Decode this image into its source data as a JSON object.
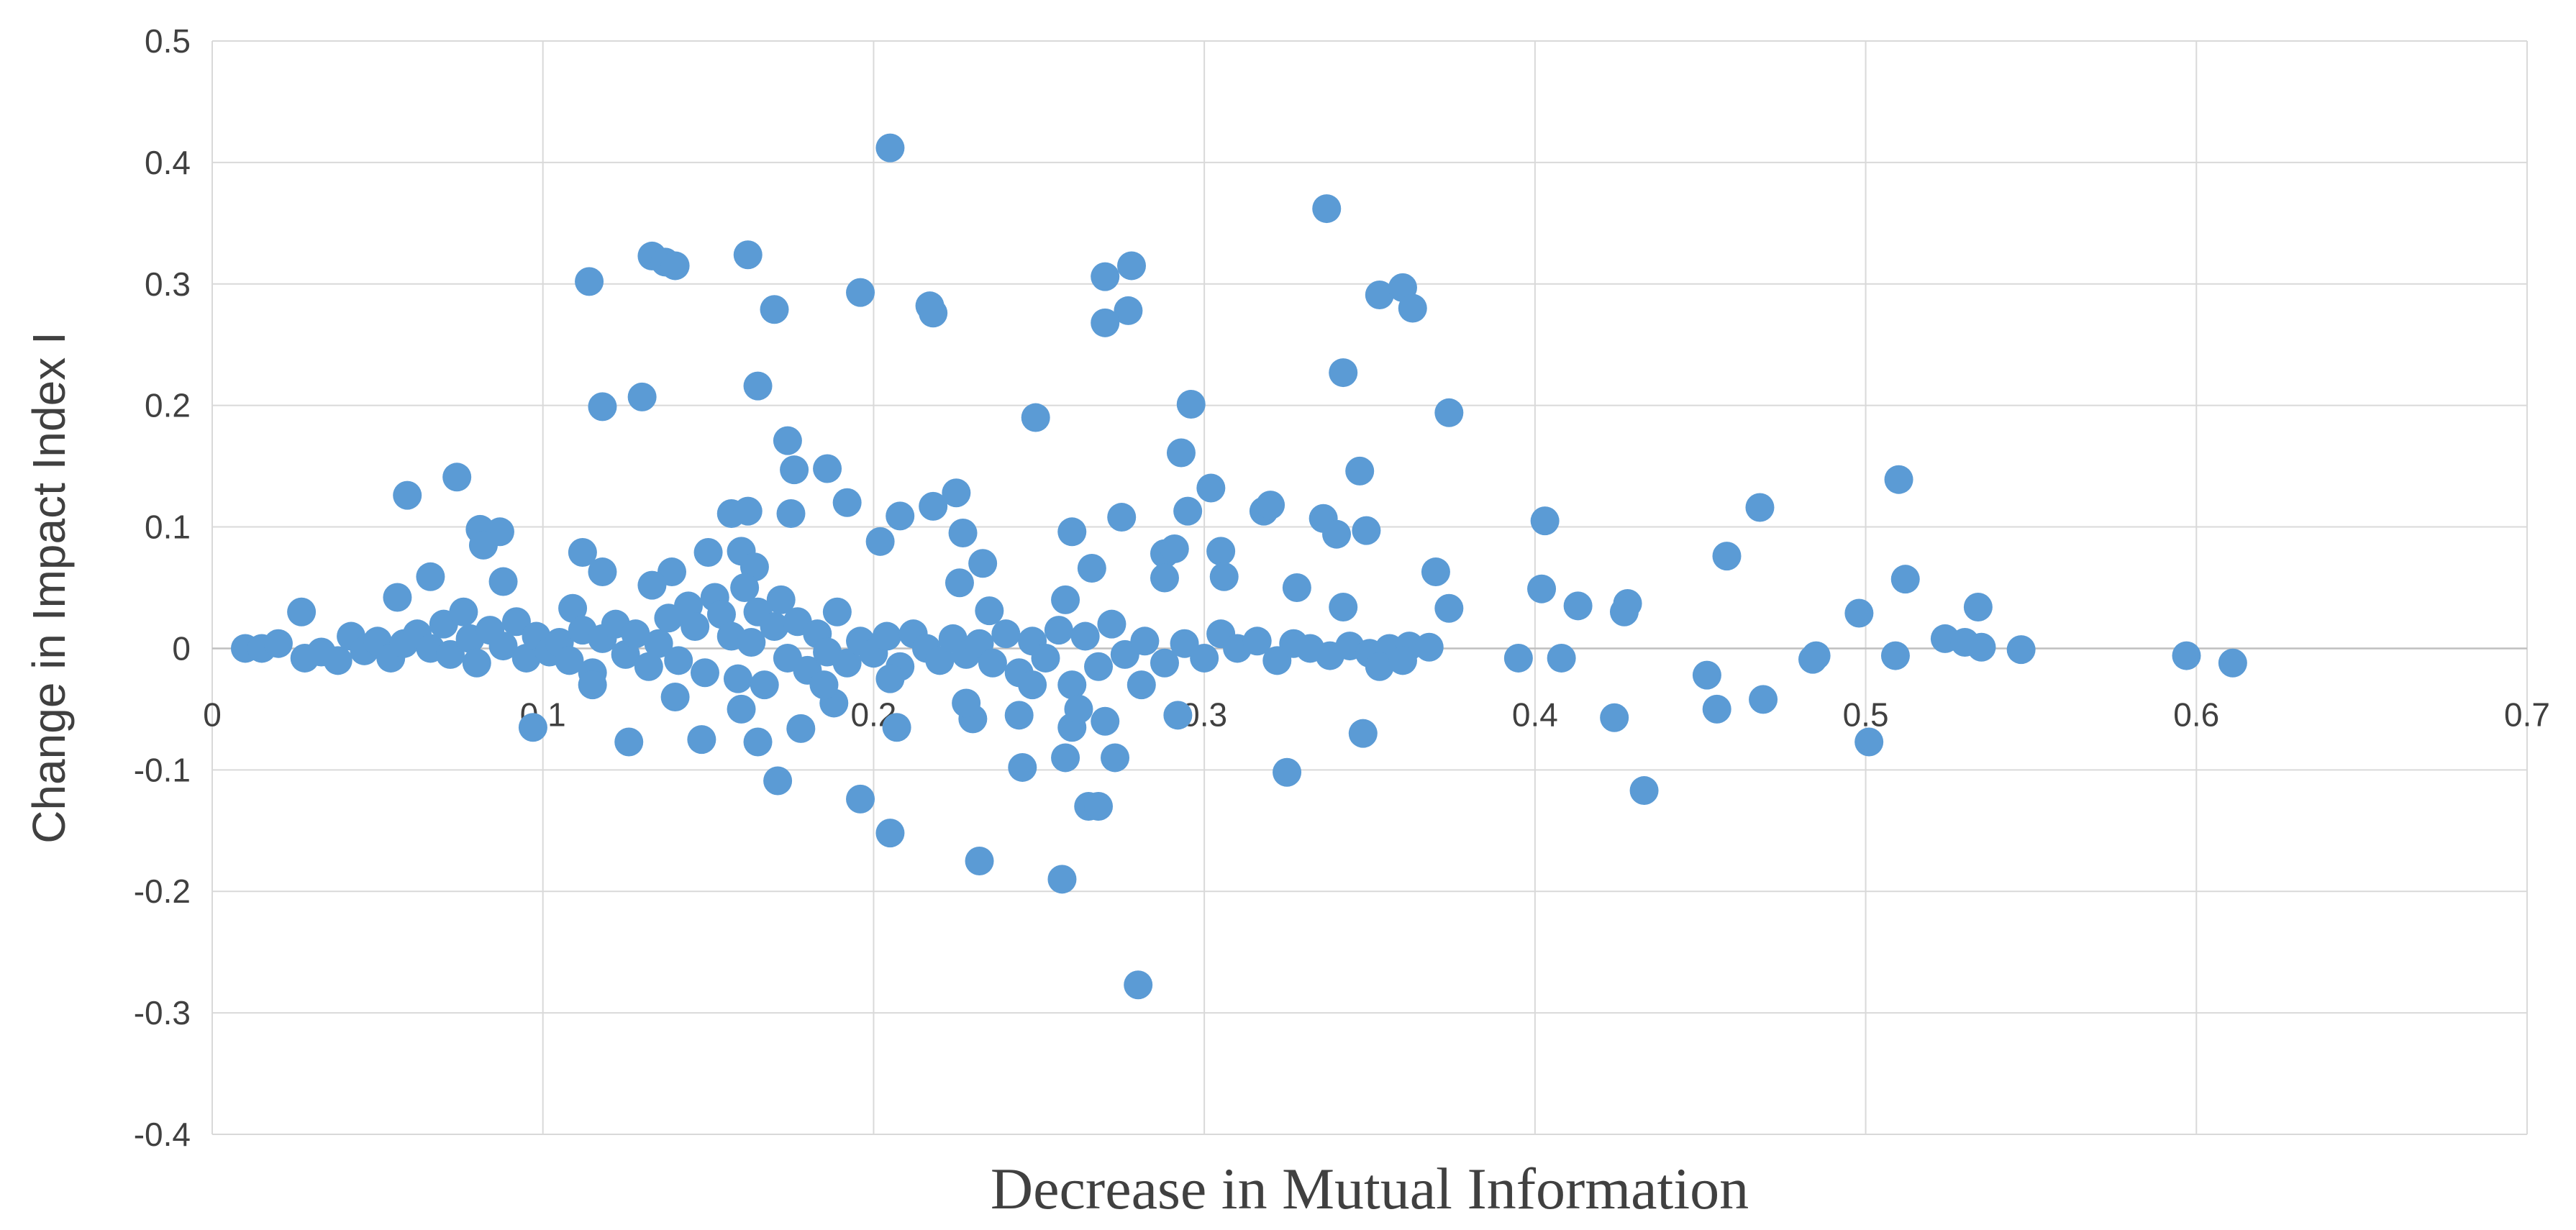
{
  "chart_data": {
    "type": "scatter",
    "title": "",
    "xlabel": "Decrease in Mutual Information",
    "ylabel": "Change in Impact Index I",
    "xlim": [
      0,
      0.7
    ],
    "ylim": [
      -0.4,
      0.5
    ],
    "xticks": [
      0,
      0.1,
      0.2,
      0.3,
      0.4,
      0.5,
      0.6,
      0.7
    ],
    "xtick_labels": [
      "0",
      "0.1",
      "0.2",
      "0.3",
      "0.4",
      "0.5",
      "0.6",
      "0.7"
    ],
    "yticks": [
      0.5,
      0.4,
      0.3,
      0.2,
      0.1,
      0,
      -0.1,
      -0.2,
      -0.3,
      -0.4
    ],
    "ytick_labels": [
      "0.5",
      "0.4",
      "0.3",
      "0.2",
      "0.1",
      "0",
      "-0.1",
      "-0.2",
      "-0.3",
      "-0.4"
    ],
    "grid": true,
    "legend": "none",
    "marker_color": "#5B9BD5",
    "grid_color": "#D9D9D9",
    "series": [
      {
        "name": "points",
        "points": [
          [
            0.205,
            0.412
          ],
          [
            0.337,
            0.362
          ],
          [
            0.133,
            0.323
          ],
          [
            0.137,
            0.318
          ],
          [
            0.14,
            0.315
          ],
          [
            0.162,
            0.324
          ],
          [
            0.114,
            0.302
          ],
          [
            0.17,
            0.279
          ],
          [
            0.196,
            0.293
          ],
          [
            0.217,
            0.282
          ],
          [
            0.218,
            0.276
          ],
          [
            0.27,
            0.306
          ],
          [
            0.277,
            0.278
          ],
          [
            0.278,
            0.315
          ],
          [
            0.27,
            0.268
          ],
          [
            0.353,
            0.291
          ],
          [
            0.36,
            0.297
          ],
          [
            0.363,
            0.28
          ],
          [
            0.118,
            0.199
          ],
          [
            0.13,
            0.207
          ],
          [
            0.165,
            0.216
          ],
          [
            0.249,
            0.19
          ],
          [
            0.296,
            0.201
          ],
          [
            0.342,
            0.227
          ],
          [
            0.374,
            0.194
          ],
          [
            0.174,
            0.171
          ],
          [
            0.176,
            0.147
          ],
          [
            0.186,
            0.148
          ],
          [
            0.192,
            0.12
          ],
          [
            0.293,
            0.161
          ],
          [
            0.059,
            0.126
          ],
          [
            0.074,
            0.141
          ],
          [
            0.225,
            0.128
          ],
          [
            0.218,
            0.117
          ],
          [
            0.208,
            0.109
          ],
          [
            0.175,
            0.111
          ],
          [
            0.157,
            0.111
          ],
          [
            0.162,
            0.113
          ],
          [
            0.275,
            0.108
          ],
          [
            0.295,
            0.113
          ],
          [
            0.302,
            0.132
          ],
          [
            0.318,
            0.113
          ],
          [
            0.32,
            0.118
          ],
          [
            0.336,
            0.107
          ],
          [
            0.347,
            0.146
          ],
          [
            0.349,
            0.097
          ],
          [
            0.34,
            0.094
          ],
          [
            0.403,
            0.105
          ],
          [
            0.468,
            0.116
          ],
          [
            0.51,
            0.139
          ],
          [
            0.081,
            0.098
          ],
          [
            0.087,
            0.096
          ],
          [
            0.082,
            0.085
          ],
          [
            0.202,
            0.088
          ],
          [
            0.227,
            0.095
          ],
          [
            0.26,
            0.096
          ],
          [
            0.288,
            0.078
          ],
          [
            0.291,
            0.082
          ],
          [
            0.305,
            0.08
          ],
          [
            0.112,
            0.079
          ],
          [
            0.15,
            0.079
          ],
          [
            0.16,
            0.08
          ],
          [
            0.066,
            0.059
          ],
          [
            0.088,
            0.055
          ],
          [
            0.139,
            0.063
          ],
          [
            0.118,
            0.063
          ],
          [
            0.164,
            0.067
          ],
          [
            0.233,
            0.07
          ],
          [
            0.266,
            0.066
          ],
          [
            0.288,
            0.058
          ],
          [
            0.306,
            0.059
          ],
          [
            0.328,
            0.05
          ],
          [
            0.37,
            0.063
          ],
          [
            0.402,
            0.049
          ],
          [
            0.458,
            0.076
          ],
          [
            0.512,
            0.057
          ],
          [
            0.056,
            0.042
          ],
          [
            0.133,
            0.052
          ],
          [
            0.226,
            0.054
          ],
          [
            0.258,
            0.04
          ],
          [
            0.342,
            0.034
          ],
          [
            0.374,
            0.033
          ],
          [
            0.413,
            0.035
          ],
          [
            0.428,
            0.037
          ],
          [
            0.498,
            0.029
          ],
          [
            0.534,
            0.034
          ],
          [
            0.027,
            0.03
          ],
          [
            0.109,
            0.033
          ],
          [
            0.235,
            0.031
          ],
          [
            0.427,
            0.03
          ],
          [
            0.01,
            0.0
          ],
          [
            0.015,
            0.0
          ],
          [
            0.02,
            0.004
          ],
          [
            0.028,
            -0.008
          ],
          [
            0.033,
            -0.003
          ],
          [
            0.038,
            -0.01
          ],
          [
            0.042,
            0.01
          ],
          [
            0.046,
            -0.002
          ],
          [
            0.05,
            0.006
          ],
          [
            0.054,
            -0.008
          ],
          [
            0.058,
            0.004
          ],
          [
            0.062,
            0.012
          ],
          [
            0.066,
            0.0
          ],
          [
            0.07,
            0.02
          ],
          [
            0.072,
            -0.005
          ],
          [
            0.076,
            0.03
          ],
          [
            0.078,
            0.008
          ],
          [
            0.08,
            -0.012
          ],
          [
            0.084,
            0.015
          ],
          [
            0.088,
            0.002
          ],
          [
            0.092,
            0.022
          ],
          [
            0.095,
            -0.008
          ],
          [
            0.098,
            0.01
          ],
          [
            0.102,
            -0.003
          ],
          [
            0.105,
            0.005
          ],
          [
            0.108,
            -0.01
          ],
          [
            0.112,
            0.015
          ],
          [
            0.115,
            -0.02
          ],
          [
            0.118,
            0.008
          ],
          [
            0.122,
            0.02
          ],
          [
            0.125,
            -0.005
          ],
          [
            0.128,
            0.012
          ],
          [
            0.132,
            -0.015
          ],
          [
            0.135,
            0.004
          ],
          [
            0.138,
            0.025
          ],
          [
            0.141,
            -0.01
          ],
          [
            0.144,
            0.035
          ],
          [
            0.146,
            0.018
          ],
          [
            0.149,
            -0.02
          ],
          [
            0.152,
            0.042
          ],
          [
            0.154,
            0.028
          ],
          [
            0.157,
            0.01
          ],
          [
            0.159,
            -0.025
          ],
          [
            0.161,
            0.05
          ],
          [
            0.163,
            0.005
          ],
          [
            0.165,
            0.03
          ],
          [
            0.167,
            -0.03
          ],
          [
            0.17,
            0.018
          ],
          [
            0.172,
            0.04
          ],
          [
            0.174,
            -0.008
          ],
          [
            0.177,
            0.022
          ],
          [
            0.18,
            -0.018
          ],
          [
            0.183,
            0.012
          ],
          [
            0.186,
            -0.003
          ],
          [
            0.189,
            0.03
          ],
          [
            0.192,
            -0.012
          ],
          [
            0.196,
            0.006
          ],
          [
            0.2,
            -0.004
          ],
          [
            0.204,
            0.01
          ],
          [
            0.208,
            -0.015
          ],
          [
            0.212,
            0.012
          ],
          [
            0.216,
            0.0
          ],
          [
            0.22,
            -0.01
          ],
          [
            0.224,
            0.008
          ],
          [
            0.228,
            -0.005
          ],
          [
            0.232,
            0.004
          ],
          [
            0.236,
            -0.012
          ],
          [
            0.24,
            0.012
          ],
          [
            0.244,
            -0.02
          ],
          [
            0.248,
            0.006
          ],
          [
            0.252,
            -0.008
          ],
          [
            0.256,
            0.015
          ],
          [
            0.26,
            -0.03
          ],
          [
            0.264,
            0.01
          ],
          [
            0.268,
            -0.015
          ],
          [
            0.272,
            0.02
          ],
          [
            0.276,
            -0.005
          ],
          [
            0.282,
            0.006
          ],
          [
            0.288,
            -0.012
          ],
          [
            0.294,
            0.004
          ],
          [
            0.3,
            -0.008
          ],
          [
            0.305,
            0.012
          ],
          [
            0.31,
            0.0
          ],
          [
            0.316,
            0.006
          ],
          [
            0.322,
            -0.01
          ],
          [
            0.327,
            0.004
          ],
          [
            0.332,
            0.0
          ],
          [
            0.338,
            -0.006
          ],
          [
            0.344,
            0.002
          ],
          [
            0.35,
            -0.004
          ],
          [
            0.356,
            0.0
          ],
          [
            0.362,
            0.002
          ],
          [
            0.368,
            0.001
          ],
          [
            0.395,
            -0.008
          ],
          [
            0.408,
            -0.008
          ],
          [
            0.485,
            -0.006
          ],
          [
            0.509,
            -0.006
          ],
          [
            0.524,
            0.008
          ],
          [
            0.53,
            0.005
          ],
          [
            0.535,
            0.001
          ],
          [
            0.547,
            -0.001
          ],
          [
            0.597,
            -0.006
          ],
          [
            0.611,
            -0.012
          ],
          [
            0.097,
            -0.065
          ],
          [
            0.126,
            -0.077
          ],
          [
            0.148,
            -0.075
          ],
          [
            0.165,
            -0.077
          ],
          [
            0.171,
            -0.109
          ],
          [
            0.178,
            -0.066
          ],
          [
            0.196,
            -0.124
          ],
          [
            0.205,
            -0.152
          ],
          [
            0.207,
            -0.065
          ],
          [
            0.23,
            -0.058
          ],
          [
            0.232,
            -0.175
          ],
          [
            0.244,
            -0.055
          ],
          [
            0.245,
            -0.098
          ],
          [
            0.257,
            -0.19
          ],
          [
            0.258,
            -0.09
          ],
          [
            0.26,
            -0.065
          ],
          [
            0.265,
            -0.13
          ],
          [
            0.268,
            -0.13
          ],
          [
            0.27,
            -0.06
          ],
          [
            0.273,
            -0.09
          ],
          [
            0.28,
            -0.277
          ],
          [
            0.281,
            -0.03
          ],
          [
            0.325,
            -0.102
          ],
          [
            0.348,
            -0.07
          ],
          [
            0.424,
            -0.057
          ],
          [
            0.433,
            -0.117
          ],
          [
            0.452,
            -0.022
          ],
          [
            0.455,
            -0.05
          ],
          [
            0.469,
            -0.042
          ],
          [
            0.501,
            -0.077
          ],
          [
            0.484,
            -0.009
          ],
          [
            0.14,
            -0.04
          ],
          [
            0.16,
            -0.05
          ],
          [
            0.188,
            -0.045
          ],
          [
            0.228,
            -0.045
          ],
          [
            0.248,
            -0.03
          ],
          [
            0.262,
            -0.05
          ],
          [
            0.292,
            -0.055
          ],
          [
            0.353,
            -0.015
          ],
          [
            0.36,
            -0.01
          ],
          [
            0.115,
            -0.03
          ],
          [
            0.185,
            -0.03
          ],
          [
            0.205,
            -0.025
          ]
        ]
      }
    ]
  }
}
